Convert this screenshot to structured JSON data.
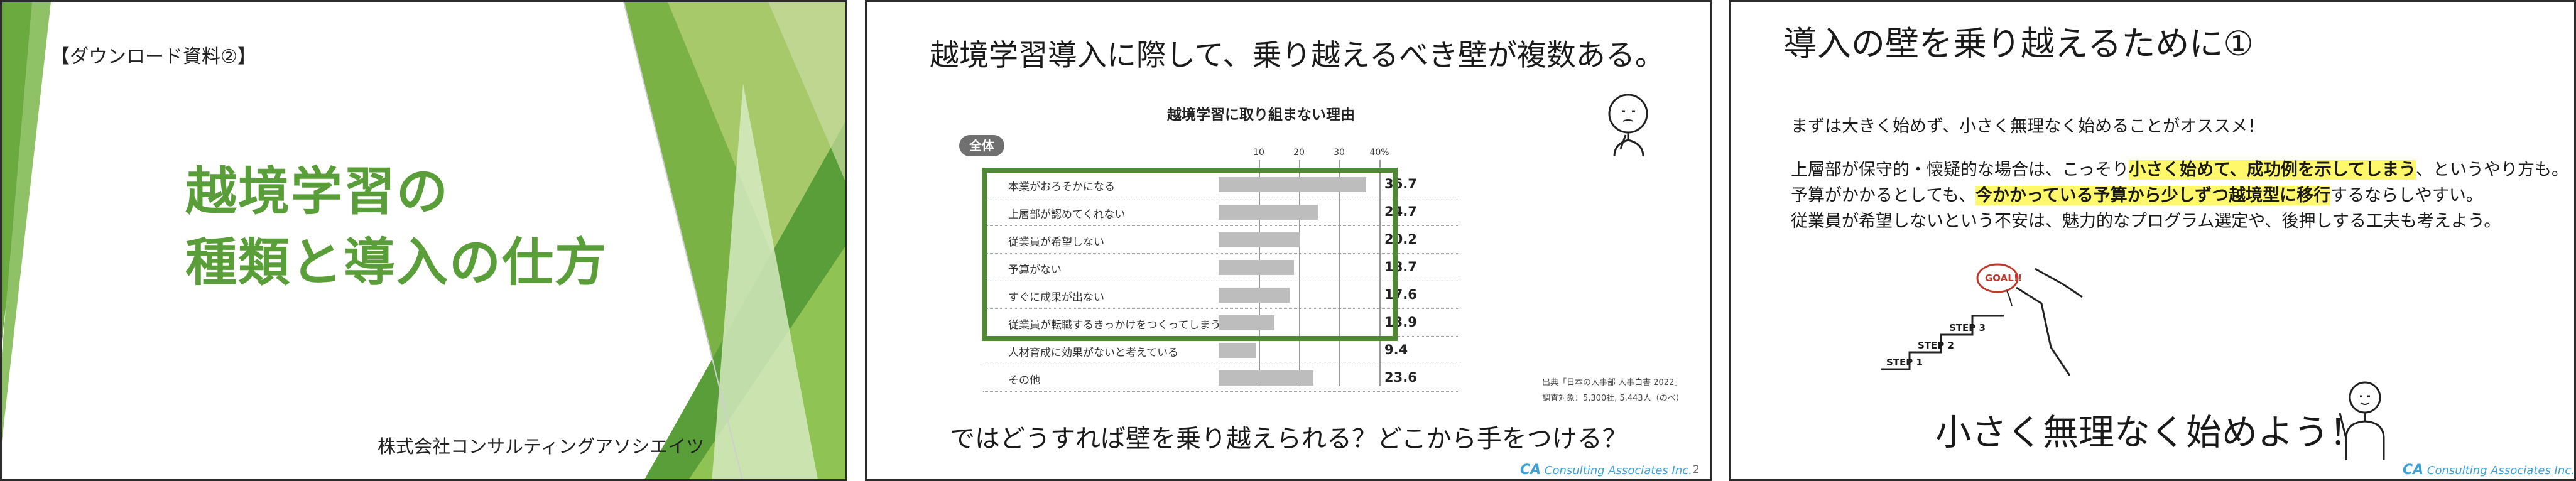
{
  "slide1": {
    "download_label": "【ダウンロード資料②】",
    "title_line1": "越境学習の",
    "title_line2": "種類と導入の仕方",
    "company": "株式会社コンサルティングアソシエイツ"
  },
  "slide2": {
    "heading": "越境学習導入に際して、乗り越えるべき壁が複数ある。",
    "question": "ではどうすれば壁を乗り越えられる？どこから手をつける？",
    "source_line1": "出典「日本の人事部 人事白書 2022」",
    "source_line2": "調査対象：5,300社, 5,443人（のべ）",
    "footer_logo_mark": "CA",
    "footer_logo_text": "Consulting Associates Inc.",
    "page_number": "2"
  },
  "chart_data": {
    "type": "bar",
    "title": "越境学習に取り組まない理由",
    "group_label": "全体",
    "categories": [
      "本業がおろそかになる",
      "上層部が認めてくれない",
      "従業員が希望しない",
      "予算がない",
      "すぐに成果が出ない",
      "従業員が転職するきっかけをつくってしまう",
      "人材育成に効果がないと考えている",
      "その他"
    ],
    "values": [
      36.7,
      24.7,
      20.2,
      18.7,
      17.6,
      13.9,
      9.4,
      23.6
    ],
    "value_labels": [
      "36.7",
      "24.7",
      "20.2",
      "18.7",
      "17.6",
      "13.9",
      "9.4",
      "23.6"
    ],
    "tick_labels": [
      "10",
      "20",
      "30",
      "40%"
    ],
    "ylim": [
      0,
      40
    ],
    "highlighted_rows": 6,
    "bar_color": "#bdbdbd",
    "highlight_color": "#4f8a33",
    "grid": true
  },
  "slide3": {
    "title": "導入の壁を乗り越えるために①",
    "line1": "まずは大きく始めず、小さく無理なく始めることがオススメ！",
    "line2a": "上層部が保守的・懐疑的な場合は、こっそり",
    "line2_highlight": "小さく始めて、成功例を示してしまう",
    "line2b": "、というやり方も。",
    "line3a": "予算がかかるとしても、",
    "line3_highlight": "今かかっている予算から少しずつ越境型に移行",
    "line3b": "するならしやすい。",
    "line4": "従業員が希望しないという不安は、魅力的なプログラム選定や、後押しする工夫も考えよう。",
    "slogan": "小さく無理なく始めよう！",
    "step1": "STEP 1",
    "step2": "STEP 2",
    "step3": "STEP 3",
    "goal": "GOAL!!",
    "footer_logo_mark": "CA",
    "footer_logo_text": "Consulting Associates Inc."
  },
  "colors": {
    "brand_green": "#5a9e3a",
    "highlight_yellow": "#fff86a",
    "logo_blue": "#3aa0d8"
  }
}
